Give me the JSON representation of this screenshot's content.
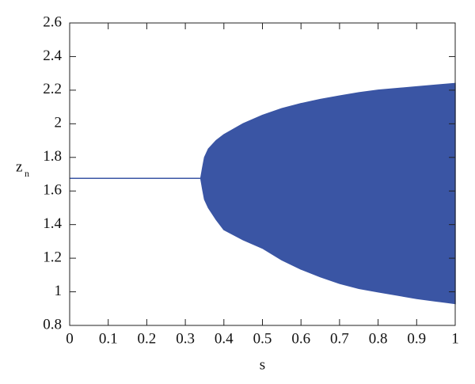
{
  "chart_data": {
    "type": "band",
    "xlabel": "s",
    "ylabel": "z",
    "ylabel_sub": "n",
    "x": [
      0,
      0.34,
      0.345,
      0.35,
      0.36,
      0.38,
      0.4,
      0.45,
      0.5,
      0.55,
      0.6,
      0.65,
      0.7,
      0.75,
      0.8,
      0.85,
      0.9,
      0.95,
      1
    ],
    "high": [
      1.675,
      1.675,
      1.74,
      1.8,
      1.85,
      1.9,
      1.935,
      2.0,
      2.05,
      2.09,
      2.12,
      2.145,
      2.165,
      2.185,
      2.2,
      2.21,
      2.22,
      2.23,
      2.24
    ],
    "low": [
      1.675,
      1.675,
      1.61,
      1.55,
      1.5,
      1.43,
      1.37,
      1.31,
      1.26,
      1.19,
      1.135,
      1.09,
      1.05,
      1.02,
      1.0,
      0.98,
      0.96,
      0.945,
      0.93
    ],
    "color": "#3a55a4",
    "xlim": [
      0,
      1
    ],
    "xticks": [
      0,
      0.1,
      0.2,
      0.3,
      0.4,
      0.5,
      0.6,
      0.7,
      0.8,
      0.9,
      1
    ],
    "ylim": [
      0.8,
      2.6
    ],
    "yticks": [
      0.8,
      1,
      1.2,
      1.4,
      1.6,
      1.8,
      2,
      2.2,
      2.4,
      2.6
    ]
  }
}
